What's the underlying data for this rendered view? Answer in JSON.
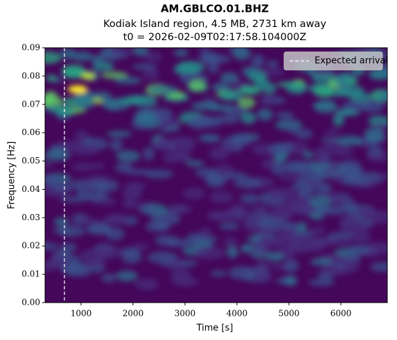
{
  "chart_data": {
    "type": "spectrogram",
    "title": "AM.GBLCO.01.BHZ",
    "subtitle": [
      "Kodiak Island region, 4.5 MB, 2731 km away",
      "t0 = 2026-02-09T02:17:58.104000Z"
    ],
    "xlabel": "Time [s]",
    "ylabel": "Frequency [Hz]",
    "xlim": [
      307,
      6893
    ],
    "xticks": [
      1000,
      2000,
      3000,
      4000,
      5000,
      6000
    ],
    "ylim": [
      0,
      0.09
    ],
    "yticks": [
      {
        "value": 0,
        "label": "0.00"
      },
      0.01,
      0.02,
      0.03,
      0.04,
      0.05,
      0.06,
      0.07,
      0.08,
      0.09
    ],
    "colormap": "viridis",
    "vlines": [
      {
        "name": "Expected arrival",
        "x": 680,
        "color": "#ffffff",
        "dashed": true
      }
    ],
    "legend": "upper right"
  }
}
